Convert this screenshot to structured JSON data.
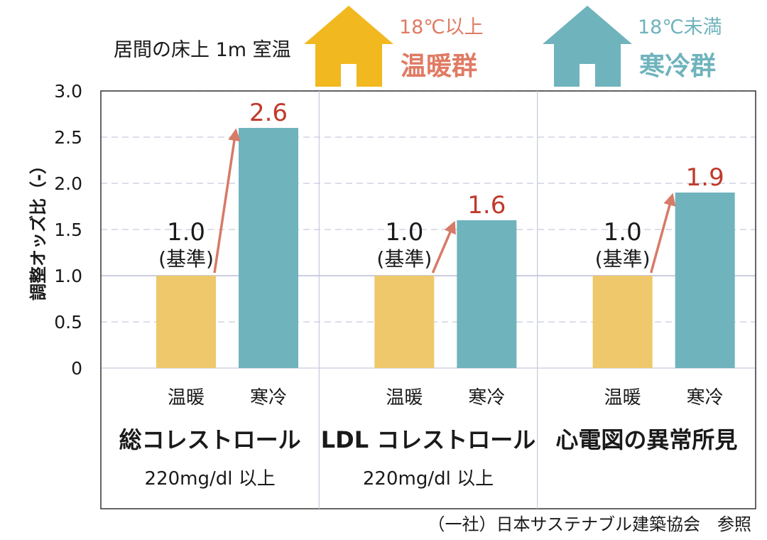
{
  "header": {
    "title": "居間の床上 1m 室温"
  },
  "legend": [
    {
      "temp": "18℃以上",
      "label": "温暖群",
      "color": "#eec86a",
      "icon_color": "#f1b81f",
      "icon": "house-icon"
    },
    {
      "temp": "18℃未満",
      "label": "寒冷群",
      "color": "#6fb3bc",
      "icon_color": "#6fb3bc",
      "icon": "house-icon"
    }
  ],
  "colors": {
    "warm": "#eec86a",
    "cold": "#6fb3bc",
    "arrow": "#d77a68",
    "value_label": "#c0392b",
    "text": "#1a1a1a",
    "legend_warm_text": "#e07b63",
    "legend_cold_text": "#6fb3bc"
  },
  "chart_data": {
    "type": "bar",
    "title": "",
    "xlabel": "",
    "ylabel": "調整オッズ比（-）",
    "ylim": [
      0,
      3.0
    ],
    "yticks": [
      "0",
      "0.5",
      "1.0",
      "1.5",
      "2.0",
      "2.5",
      "3.0"
    ],
    "yticks_values": [
      0,
      0.5,
      1.0,
      1.5,
      2.0,
      2.5,
      3.0
    ],
    "grid": true,
    "series_names": [
      "温暖",
      "寒冷"
    ],
    "groups": [
      {
        "name": "総コレストロール",
        "subtitle": "220mg/dl 以上",
        "values": [
          1.0,
          2.6
        ],
        "labels": [
          "1.0",
          "2.6"
        ],
        "baseline_note": "(基準)"
      },
      {
        "name": "LDL コレストロール",
        "subtitle": "220mg/dl 以上",
        "values": [
          1.0,
          1.6
        ],
        "labels": [
          "1.0",
          "1.6"
        ],
        "baseline_note": "(基準)"
      },
      {
        "name": "心電図の異常所見",
        "subtitle": "",
        "values": [
          1.0,
          1.9
        ],
        "labels": [
          "1.0",
          "1.9"
        ],
        "baseline_note": "(基準)"
      }
    ]
  },
  "footer": {
    "source": "（一社）日本サステナブル建築協会　参照"
  }
}
